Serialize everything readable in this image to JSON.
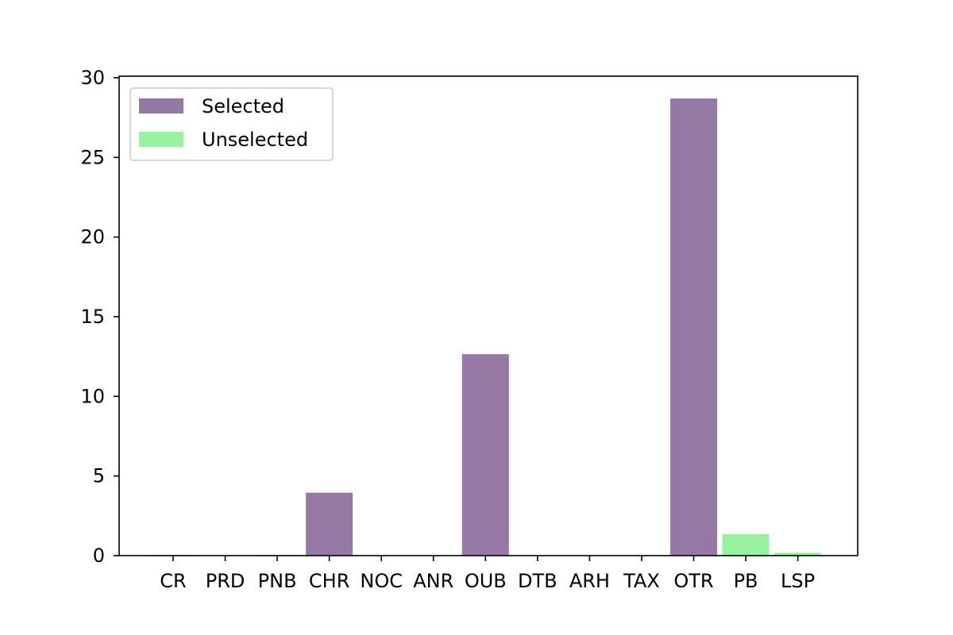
{
  "chart_data": {
    "type": "bar",
    "categories": [
      "CR",
      "PRD",
      "PNB",
      "CHR",
      "NOC",
      "ANR",
      "OUB",
      "DTB",
      "ARH",
      "TAX",
      "OTR",
      "PB",
      "LSP"
    ],
    "series": [
      {
        "name": "Selected",
        "color": "#9678a5",
        "values": [
          0,
          0,
          0,
          3.95,
          0,
          0,
          12.65,
          0,
          0,
          0,
          28.7,
          0,
          0
        ]
      },
      {
        "name": "Unselected",
        "color": "#98f19f",
        "values": [
          0.05,
          0,
          0.05,
          0,
          0,
          0,
          0,
          0,
          0,
          0,
          0,
          1.35,
          0.18
        ]
      }
    ],
    "yticks": [
      "0",
      "5",
      "10",
      "15",
      "20",
      "25",
      "30"
    ],
    "ylim": [
      0,
      30.1
    ],
    "legend_position": "upper-left",
    "grid": false
  }
}
